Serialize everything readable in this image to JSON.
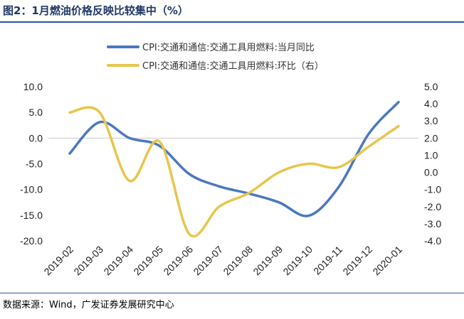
{
  "header": {
    "title": "图2：1月燃油价格反映比较集中（%）"
  },
  "footer": {
    "source": "数据来源：Wind，广发证券发展研究中心"
  },
  "chart_data": {
    "type": "line",
    "categories": [
      "2019-02",
      "2019-03",
      "2019-04",
      "2019-05",
      "2019-06",
      "2019-07",
      "2019-08",
      "2019-09",
      "2019-10",
      "2019-11",
      "2019-12",
      "2020-01"
    ],
    "series": [
      {
        "name": "CPI:交通和通信:交通工具用燃料:当月同比",
        "axis": "left",
        "color": "#4a78bd",
        "smooth": true,
        "values": [
          -3.0,
          3.1,
          0.0,
          -1.5,
          -7.0,
          -9.4,
          -10.8,
          -12.5,
          -15.1,
          -9.5,
          0.8,
          7.0
        ]
      },
      {
        "name": "CPI:交通和通信:交通工具用燃料:环比（右）",
        "axis": "right",
        "color": "#e6c64c",
        "smooth": true,
        "values": [
          3.5,
          3.5,
          -0.5,
          1.8,
          -3.6,
          -2.0,
          -1.2,
          0.0,
          0.5,
          0.3,
          1.5,
          2.7
        ]
      }
    ],
    "y_left": {
      "min": -20,
      "max": 10,
      "ticks": [
        "10.0",
        "5.0",
        "0.0",
        "-5.0",
        "-10.0",
        "-15.0",
        "-20.0"
      ]
    },
    "y_right": {
      "min": -4,
      "max": 5,
      "ticks": [
        "5.0",
        "4.0",
        "3.0",
        "2.0",
        "1.0",
        "0.0",
        "-1.0",
        "-2.0",
        "-3.0",
        "-4.0"
      ]
    },
    "grid": false,
    "legend_position": "top"
  }
}
